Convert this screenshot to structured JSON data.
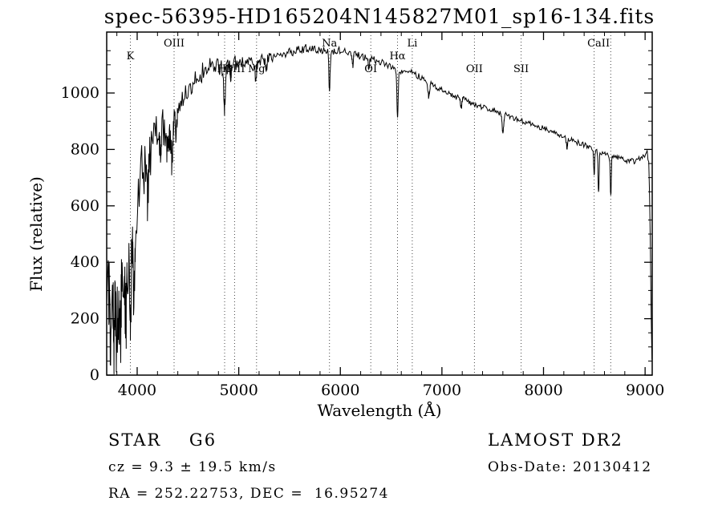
{
  "chart_data": {
    "type": "line",
    "title": "spec-56395-HD165204N145827M01_sp16-134.fits",
    "xlabel": "Wavelength (Å)",
    "ylabel": "Flux (relative)",
    "xlim": [
      3700,
      9070
    ],
    "ylim": [
      0,
      1216
    ],
    "xticks": [
      4000,
      5000,
      6000,
      7000,
      8000,
      9000
    ],
    "yticks": [
      0,
      200,
      400,
      600,
      800,
      1000
    ],
    "x_minor_step": 200,
    "y_minor_step": 50,
    "grid": "off",
    "line_color": "#000000",
    "marker_line_color": "#444444",
    "continuum": [
      [
        3700,
        390
      ],
      [
        3715,
        310
      ],
      [
        3730,
        300
      ],
      [
        3745,
        260
      ],
      [
        3760,
        300
      ],
      [
        3775,
        260
      ],
      [
        3790,
        290
      ],
      [
        3805,
        310
      ],
      [
        3820,
        280
      ],
      [
        3835,
        330
      ],
      [
        3850,
        340
      ],
      [
        3870,
        320
      ],
      [
        3890,
        360
      ],
      [
        3910,
        380
      ],
      [
        3930,
        360
      ],
      [
        3950,
        470
      ],
      [
        3970,
        460
      ],
      [
        3990,
        560
      ],
      [
        4010,
        640
      ],
      [
        4030,
        700
      ],
      [
        4050,
        730
      ],
      [
        4070,
        720
      ],
      [
        4090,
        740
      ],
      [
        4110,
        760
      ],
      [
        4130,
        790
      ],
      [
        4150,
        810
      ],
      [
        4180,
        840
      ],
      [
        4210,
        860
      ],
      [
        4240,
        870
      ],
      [
        4270,
        880
      ],
      [
        4300,
        870
      ],
      [
        4330,
        880
      ],
      [
        4360,
        900
      ],
      [
        4400,
        940
      ],
      [
        4450,
        980
      ],
      [
        4500,
        1010
      ],
      [
        4550,
        1040
      ],
      [
        4600,
        1060
      ],
      [
        4650,
        1080
      ],
      [
        4700,
        1090
      ],
      [
        4800,
        1090
      ],
      [
        4900,
        1105
      ],
      [
        5000,
        1110
      ],
      [
        5100,
        1110
      ],
      [
        5200,
        1115
      ],
      [
        5300,
        1125
      ],
      [
        5400,
        1135
      ],
      [
        5500,
        1145
      ],
      [
        5600,
        1155
      ],
      [
        5700,
        1160
      ],
      [
        5800,
        1155
      ],
      [
        5900,
        1145
      ],
      [
        6000,
        1150
      ],
      [
        6100,
        1142
      ],
      [
        6200,
        1130
      ],
      [
        6300,
        1122
      ],
      [
        6400,
        1108
      ],
      [
        6500,
        1090
      ],
      [
        6600,
        1078
      ],
      [
        6700,
        1075
      ],
      [
        6800,
        1052
      ],
      [
        6900,
        1030
      ],
      [
        7000,
        1012
      ],
      [
        7100,
        992
      ],
      [
        7200,
        980
      ],
      [
        7300,
        962
      ],
      [
        7400,
        948
      ],
      [
        7500,
        940
      ],
      [
        7600,
        925
      ],
      [
        7700,
        912
      ],
      [
        7800,
        900
      ],
      [
        7900,
        885
      ],
      [
        8000,
        875
      ],
      [
        8100,
        860
      ],
      [
        8200,
        845
      ],
      [
        8300,
        830
      ],
      [
        8400,
        815
      ],
      [
        8500,
        800
      ],
      [
        8600,
        785
      ],
      [
        8700,
        772
      ],
      [
        8800,
        762
      ],
      [
        8900,
        757
      ],
      [
        8950,
        768
      ],
      [
        9000,
        782
      ],
      [
        9020,
        788
      ],
      [
        9035,
        760
      ],
      [
        9045,
        620
      ],
      [
        9055,
        380
      ],
      [
        9062,
        150
      ],
      [
        9070,
        25
      ]
    ],
    "noise_profile": [
      [
        3700,
        150
      ],
      [
        3800,
        150
      ],
      [
        3900,
        140
      ],
      [
        3950,
        120
      ],
      [
        4000,
        100
      ],
      [
        4100,
        90
      ],
      [
        4200,
        75
      ],
      [
        4300,
        65
      ],
      [
        4400,
        55
      ],
      [
        4500,
        45
      ],
      [
        4600,
        38
      ],
      [
        4700,
        35
      ],
      [
        4800,
        32
      ],
      [
        4900,
        30
      ],
      [
        5000,
        26
      ],
      [
        5200,
        22
      ],
      [
        5400,
        18
      ],
      [
        5600,
        16
      ],
      [
        5800,
        15
      ],
      [
        6000,
        14
      ],
      [
        6300,
        13
      ],
      [
        6600,
        12
      ],
      [
        7000,
        11
      ],
      [
        7400,
        10
      ],
      [
        7800,
        10
      ],
      [
        8200,
        9
      ],
      [
        8600,
        10
      ],
      [
        9000,
        10
      ]
    ],
    "absorption_features": [
      {
        "wavelength": 3735,
        "depth": 150,
        "width": 7
      },
      {
        "wavelength": 3770,
        "depth": 140,
        "width": 7
      },
      {
        "wavelength": 3798,
        "depth": 160,
        "width": 7
      },
      {
        "wavelength": 3835,
        "depth": 170,
        "width": 7
      },
      {
        "wavelength": 3889,
        "depth": 170,
        "width": 7
      },
      {
        "wavelength": 3933,
        "depth": 200,
        "width": 7
      },
      {
        "wavelength": 3968,
        "depth": 190,
        "width": 7
      },
      {
        "wavelength": 4101,
        "depth": 130,
        "width": 9
      },
      {
        "wavelength": 4227,
        "depth": 60,
        "width": 6
      },
      {
        "wavelength": 4300,
        "depth": 90,
        "width": 10
      },
      {
        "wavelength": 4340,
        "depth": 120,
        "width": 9
      },
      {
        "wavelength": 4383,
        "depth": 70,
        "width": 6
      },
      {
        "wavelength": 4861,
        "depth": 150,
        "width": 8
      },
      {
        "wavelength": 4920,
        "depth": 40,
        "width": 6
      },
      {
        "wavelength": 5167,
        "depth": 60,
        "width": 8
      },
      {
        "wavelength": 5270,
        "depth": 40,
        "width": 7
      },
      {
        "wavelength": 5893,
        "depth": 130,
        "width": 6
      },
      {
        "wavelength": 6122,
        "depth": 40,
        "width": 6
      },
      {
        "wavelength": 6280,
        "depth": 35,
        "width": 6
      },
      {
        "wavelength": 6563,
        "depth": 160,
        "width": 7
      },
      {
        "wavelength": 6870,
        "depth": 55,
        "width": 7
      },
      {
        "wavelength": 7190,
        "depth": 30,
        "width": 7
      },
      {
        "wavelength": 7600,
        "depth": 65,
        "width": 8
      },
      {
        "wavelength": 8230,
        "depth": 35,
        "width": 6
      },
      {
        "wavelength": 8498,
        "depth": 90,
        "width": 5
      },
      {
        "wavelength": 8542,
        "depth": 150,
        "width": 5
      },
      {
        "wavelength": 8662,
        "depth": 140,
        "width": 5
      }
    ],
    "marker_wavelengths": [
      3933,
      4363,
      4861,
      4959,
      5175,
      5893,
      6300,
      6563,
      6708,
      7320,
      7780,
      8498,
      8662
    ],
    "spectral_lines": [
      {
        "label": "K",
        "wavelength": 3933,
        "row": 1
      },
      {
        "label": "OIII",
        "wavelength": 4363,
        "row": 0
      },
      {
        "label": "Hβ",
        "wavelength": 4861,
        "row": 2
      },
      {
        "label": "OIII",
        "wavelength": 4959,
        "row": 2
      },
      {
        "label": "Mg",
        "wavelength": 5175,
        "row": 2
      },
      {
        "label": "Na",
        "wavelength": 5893,
        "row": 0
      },
      {
        "label": "OI",
        "wavelength": 6300,
        "row": 2
      },
      {
        "label": "Hα",
        "wavelength": 6563,
        "row": 1
      },
      {
        "label": "Li",
        "wavelength": 6708,
        "row": 0
      },
      {
        "label": "OII",
        "wavelength": 7320,
        "row": 2
      },
      {
        "label": "SII",
        "wavelength": 7780,
        "row": 2
      },
      {
        "label": "CaII",
        "wavelength": 8542,
        "row": 0
      }
    ]
  },
  "footer": {
    "object_type": "STAR    G6",
    "survey": "LAMOST DR2",
    "cz": "cz = 9.3 ± 19.5 km/s",
    "obs_date": "Obs-Date: 20130412",
    "coords": "RA = 252.22753, DEC =  16.95274"
  }
}
